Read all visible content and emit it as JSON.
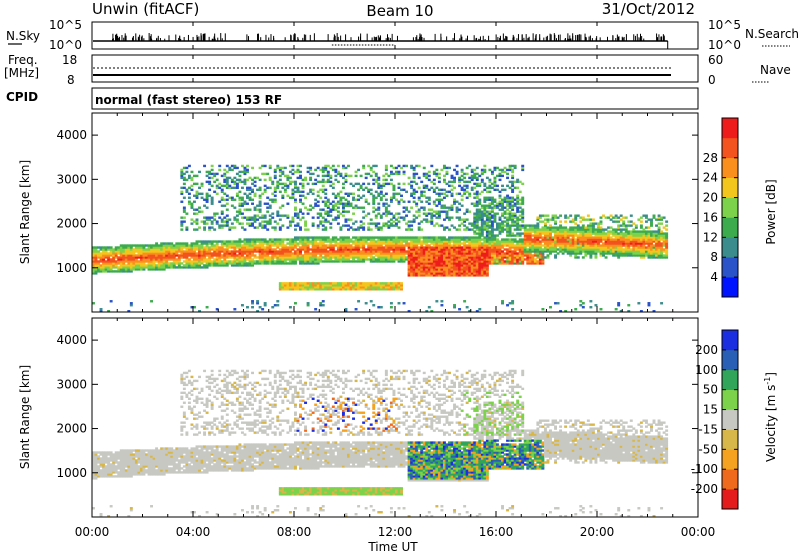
{
  "header": {
    "station": "Unwin (fitACF)",
    "beam": "Beam 10",
    "date": "31/Oct/2012"
  },
  "noise_panel": {
    "left_label": "N.Sky",
    "right_label": "N.Search",
    "y_top": "10^5",
    "y_bottom": "10^0"
  },
  "freq_panel": {
    "left_label_1": "Freq.",
    "left_label_2": "[MHz]",
    "left_top": "18",
    "left_bottom": "8",
    "right_label": "Nave",
    "right_top": "60",
    "right_bottom": "0"
  },
  "cpid": {
    "label": "CPID",
    "value": "normal (fast stereo) 153 RF"
  },
  "colors": {
    "power_scale": [
      "#0014ff",
      "#2a53c9",
      "#3b8d8d",
      "#3cab4e",
      "#7cd24a",
      "#f2c61c",
      "#fb8f1e",
      "#f2531f",
      "#ef1c1c"
    ],
    "velocity_scale": [
      "#1c2fe0",
      "#2a5fb6",
      "#31a55a",
      "#7cd24a",
      "#c8c8c3",
      "#d7b64a",
      "#f4a21f",
      "#ef6a1c",
      "#e41c1c"
    ]
  },
  "chart_data": [
    {
      "type": "heatmap",
      "title": "Power",
      "xlabel": "",
      "ylabel": "Slant Range [km]",
      "x_ticks": [
        "00:00",
        "04:00",
        "08:00",
        "12:00",
        "16:00",
        "20:00",
        "00:00"
      ],
      "xlim_hours": [
        0,
        24
      ],
      "y_ticks": [
        1000,
        2000,
        3000,
        4000
      ],
      "ylim": [
        0,
        4500
      ],
      "colorbar": {
        "label": "Power [dB]",
        "ticks": [
          4,
          8,
          12,
          16,
          20,
          24,
          28
        ],
        "range": [
          0,
          30
        ]
      },
      "features": [
        {
          "t_start": 0.0,
          "t_end": 22.8,
          "range_km": "900-1600",
          "power_db": "12-24",
          "note": "main scatter band"
        },
        {
          "t_start": 12.5,
          "t_end": 15.5,
          "range_km": "800-1400",
          "power_db": "24-30",
          "note": "strong echoes"
        },
        {
          "t_start": 7.3,
          "t_end": 12.0,
          "range_km": "480-650",
          "power_db": "16-24",
          "note": "near-range echoes"
        },
        {
          "t_start": 4.0,
          "t_end": 15.0,
          "range_km": "1800-3300",
          "power_db": "4-16",
          "note": "far-range scatter"
        }
      ]
    },
    {
      "type": "heatmap",
      "title": "Velocity",
      "xlabel": "Time UT",
      "ylabel": "Slant Range [km]",
      "x_ticks": [
        "00:00",
        "04:00",
        "08:00",
        "12:00",
        "16:00",
        "20:00",
        "00:00"
      ],
      "xlim_hours": [
        0,
        24
      ],
      "y_ticks": [
        1000,
        2000,
        3000,
        4000
      ],
      "ylim": [
        0,
        4500
      ],
      "colorbar": {
        "label": "Velocity [m s^-1]",
        "ticks": [
          "200",
          "100",
          "50",
          "15",
          "-15",
          "-50",
          "-100",
          "-200"
        ],
        "range": [
          -250,
          250
        ]
      },
      "features": [
        {
          "t_start": 0.0,
          "t_end": 22.8,
          "range_km": "900-1600",
          "velocity_ms": "-15 to 15",
          "note": "ground scatter band"
        },
        {
          "t_start": 12.5,
          "t_end": 17.8,
          "range_km": "900-1700",
          "velocity_ms": "15 to 200",
          "note": "ionospheric scatter"
        },
        {
          "t_start": 7.3,
          "t_end": 12.0,
          "range_km": "480-650",
          "velocity_ms": "15 to 50",
          "note": "near-range echoes"
        }
      ]
    }
  ],
  "power_colorbar_label": "Power [dB]",
  "velocity_colorbar_label_main": "Velocity [m s",
  "velocity_colorbar_label_exp": "-1",
  "velocity_colorbar_label_end": "]",
  "x_axis_title": "Time UT"
}
